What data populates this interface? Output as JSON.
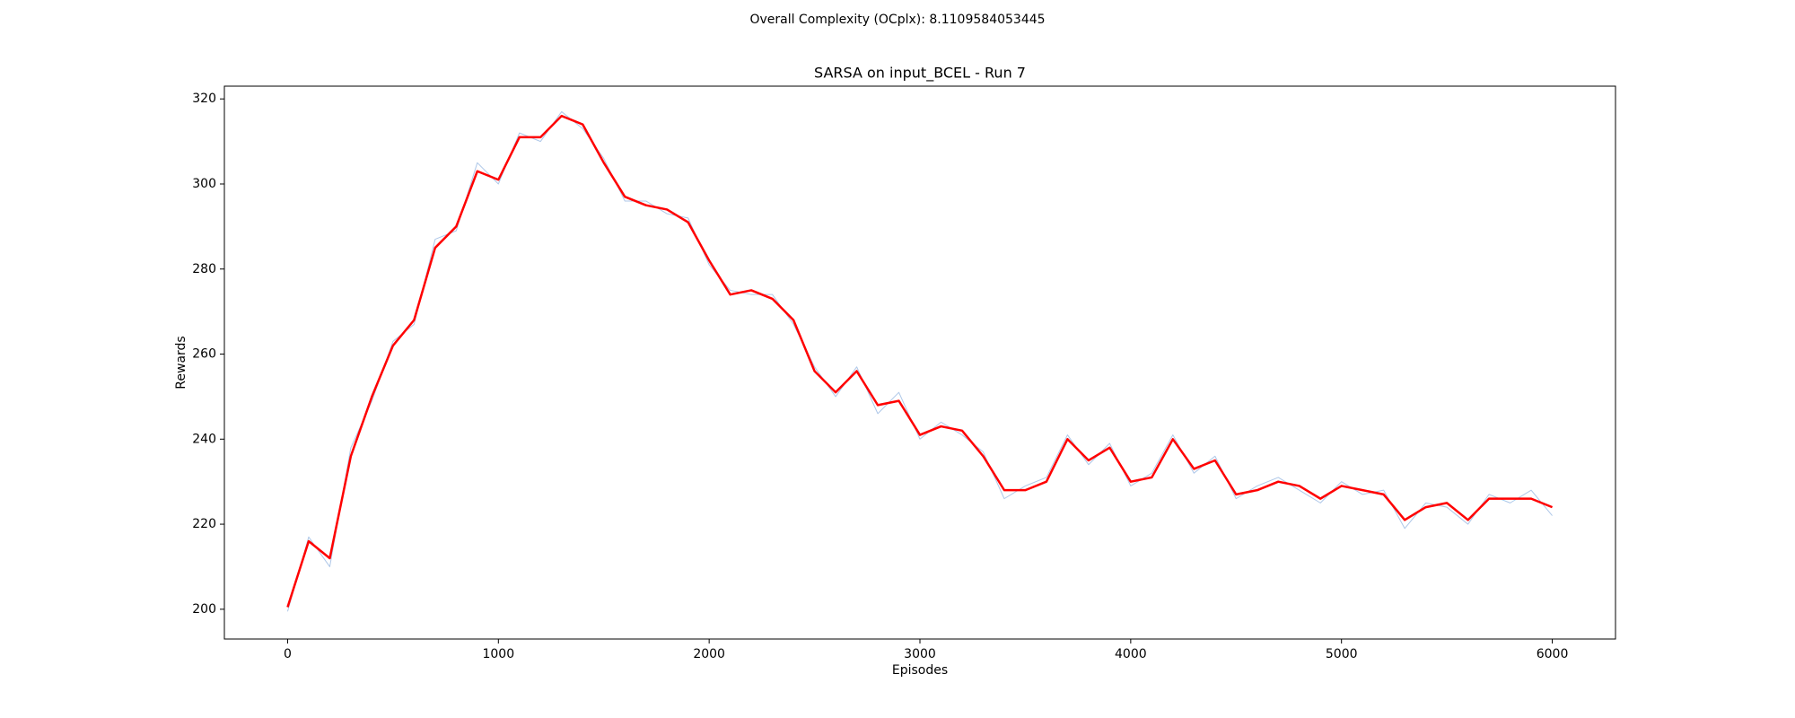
{
  "chart_data": {
    "type": "line",
    "suptitle": "Overall Complexity (OCplx): 8.1109584053445",
    "suptitle_color": "#ff0000",
    "title": "SARSA on input_BCEL - Run 7",
    "x_label": "Episodes",
    "y_label": "Rewards",
    "x": [
      0,
      100,
      200,
      300,
      400,
      500,
      600,
      700,
      800,
      900,
      1000,
      1100,
      1200,
      1300,
      1400,
      1500,
      1600,
      1700,
      1800,
      1900,
      2000,
      2100,
      2200,
      2300,
      2400,
      2500,
      2600,
      2700,
      2800,
      2900,
      3000,
      3100,
      3200,
      3300,
      3400,
      3500,
      3600,
      3700,
      3800,
      3900,
      4000,
      4100,
      4200,
      4300,
      4400,
      4500,
      4600,
      4700,
      4800,
      4900,
      5000,
      5100,
      5200,
      5300,
      5400,
      5500,
      5600,
      5700,
      5800,
      5900,
      6000
    ],
    "series": [
      {
        "color": "#aec7e8",
        "values": [
          199.5,
          217,
          210,
          238,
          249,
          263,
          267,
          287,
          289,
          305,
          300,
          312,
          310,
          317,
          313,
          306,
          296,
          296,
          293,
          292,
          281,
          275,
          274,
          274,
          267,
          257,
          250,
          257,
          246,
          251,
          240,
          244,
          241,
          237,
          226,
          229,
          231,
          241,
          234,
          239,
          229,
          232,
          241,
          232,
          236,
          226,
          229,
          231,
          228,
          225,
          230,
          227,
          228,
          219,
          225,
          224,
          220,
          227,
          225,
          228,
          222
        ],
        "width": 1
      },
      {
        "color": "#ff0000",
        "values": [
          200.5,
          216,
          212,
          236,
          250,
          262,
          268,
          285,
          290,
          303,
          301,
          311,
          311,
          316,
          314,
          305,
          297,
          295,
          294,
          291,
          282,
          274,
          275,
          273,
          268,
          256,
          251,
          256,
          248,
          249,
          241,
          243,
          242,
          236,
          228,
          228,
          230,
          240,
          235,
          238,
          230,
          231,
          240,
          233,
          235,
          227,
          228,
          230,
          229,
          226,
          229,
          228,
          227,
          221,
          224,
          225,
          221,
          226,
          226,
          226,
          224
        ],
        "width": 2.5
      }
    ],
    "xlim": [
      -300,
      6300
    ],
    "ylim": [
      193,
      323
    ],
    "xticks": [
      0,
      1000,
      2000,
      3000,
      4000,
      5000,
      6000
    ],
    "yticks": [
      200,
      220,
      240,
      260,
      280,
      300,
      320
    ],
    "grid": false
  }
}
